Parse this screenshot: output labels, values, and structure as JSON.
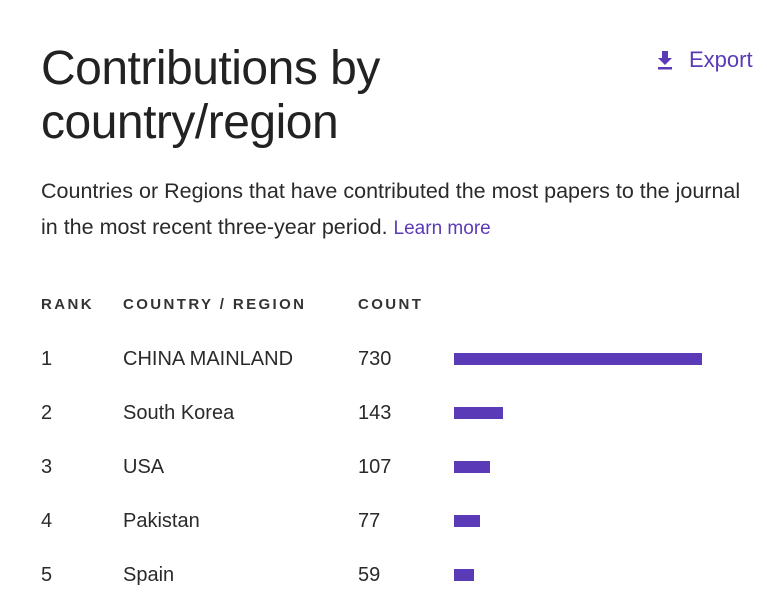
{
  "header": {
    "title": "Contributions by country/region",
    "export_label": "Export",
    "export_icon": "download-icon"
  },
  "description": {
    "text": "Countries or Regions that have contributed the most papers to the journal in the most recent three-year period.",
    "learn_more": "Learn more"
  },
  "chart_data": {
    "type": "bar",
    "columns": [
      "RANK",
      "COUNTRY / REGION",
      "COUNT"
    ],
    "ranks": [
      "1",
      "2",
      "3",
      "4",
      "5"
    ],
    "categories": [
      "CHINA MAINLAND",
      "South Korea",
      "USA",
      "Pakistan",
      "Spain"
    ],
    "values": [
      730,
      143,
      107,
      77,
      59
    ],
    "orientation": "horizontal",
    "bar_color": "#5b3ab8"
  }
}
